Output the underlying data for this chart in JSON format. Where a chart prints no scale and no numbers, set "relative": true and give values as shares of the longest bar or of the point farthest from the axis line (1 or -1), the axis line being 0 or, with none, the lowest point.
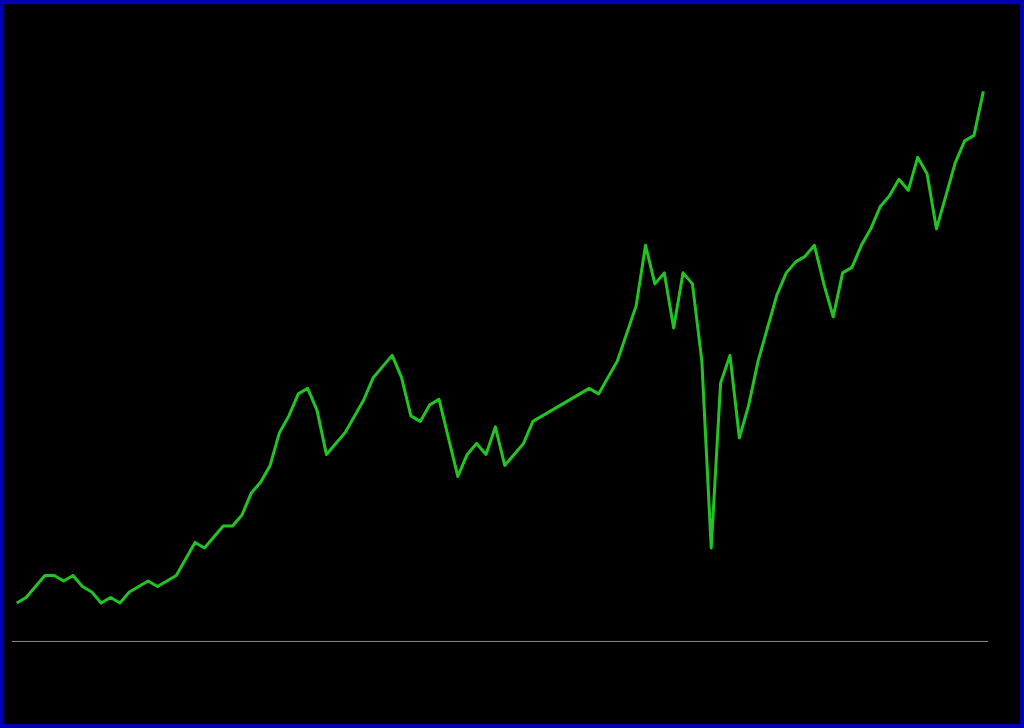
{
  "chart_data": {
    "type": "line",
    "relative": true,
    "color": "#22c322",
    "marker": "none",
    "line_style": "solid",
    "categories": [
      null,
      null,
      null,
      null,
      null,
      null,
      null,
      null,
      null,
      null,
      null,
      null,
      null,
      null,
      null,
      null,
      null,
      null,
      null,
      null,
      null,
      null,
      null,
      null,
      null,
      null,
      null,
      null,
      null,
      null,
      null,
      null,
      null,
      null,
      null,
      null,
      null,
      null,
      null,
      null,
      null,
      null,
      null,
      null,
      null,
      null,
      null,
      null,
      null,
      null,
      null,
      null,
      null,
      null,
      null,
      null,
      null,
      null,
      null,
      null,
      null,
      null,
      null,
      null,
      null,
      null,
      null,
      null,
      null,
      null,
      null,
      null,
      null,
      null,
      null,
      null,
      null,
      null,
      null,
      null,
      null,
      null,
      null,
      null,
      null,
      null,
      null,
      null,
      null,
      null,
      null,
      null,
      null,
      null,
      null,
      null,
      null,
      null,
      null,
      null,
      null,
      null,
      null,
      null
    ],
    "values": [
      0.07,
      0.08,
      0.1,
      0.12,
      0.12,
      0.11,
      0.12,
      0.1,
      0.09,
      0.07,
      0.08,
      0.07,
      0.09,
      0.1,
      0.11,
      0.1,
      0.11,
      0.12,
      0.15,
      0.18,
      0.17,
      0.19,
      0.21,
      0.21,
      0.23,
      0.27,
      0.29,
      0.32,
      0.38,
      0.41,
      0.45,
      0.46,
      0.42,
      0.34,
      0.36,
      0.38,
      0.41,
      0.44,
      0.48,
      0.5,
      0.52,
      0.48,
      0.41,
      0.4,
      0.43,
      0.44,
      0.37,
      0.3,
      0.34,
      0.36,
      0.34,
      0.39,
      0.32,
      0.34,
      0.36,
      0.4,
      0.41,
      0.42,
      0.43,
      0.44,
      0.45,
      0.46,
      0.45,
      0.48,
      0.51,
      0.56,
      0.61,
      0.72,
      0.65,
      0.67,
      0.57,
      0.67,
      0.65,
      0.51,
      0.17,
      0.47,
      0.52,
      0.37,
      0.43,
      0.51,
      0.57,
      0.63,
      0.67,
      0.69,
      0.7,
      0.72,
      0.65,
      0.59,
      0.67,
      0.68,
      0.72,
      0.75,
      0.79,
      0.81,
      0.84,
      0.82,
      0.88,
      0.85,
      0.75,
      0.81,
      0.87,
      0.91,
      0.92,
      1
    ]
  }
}
